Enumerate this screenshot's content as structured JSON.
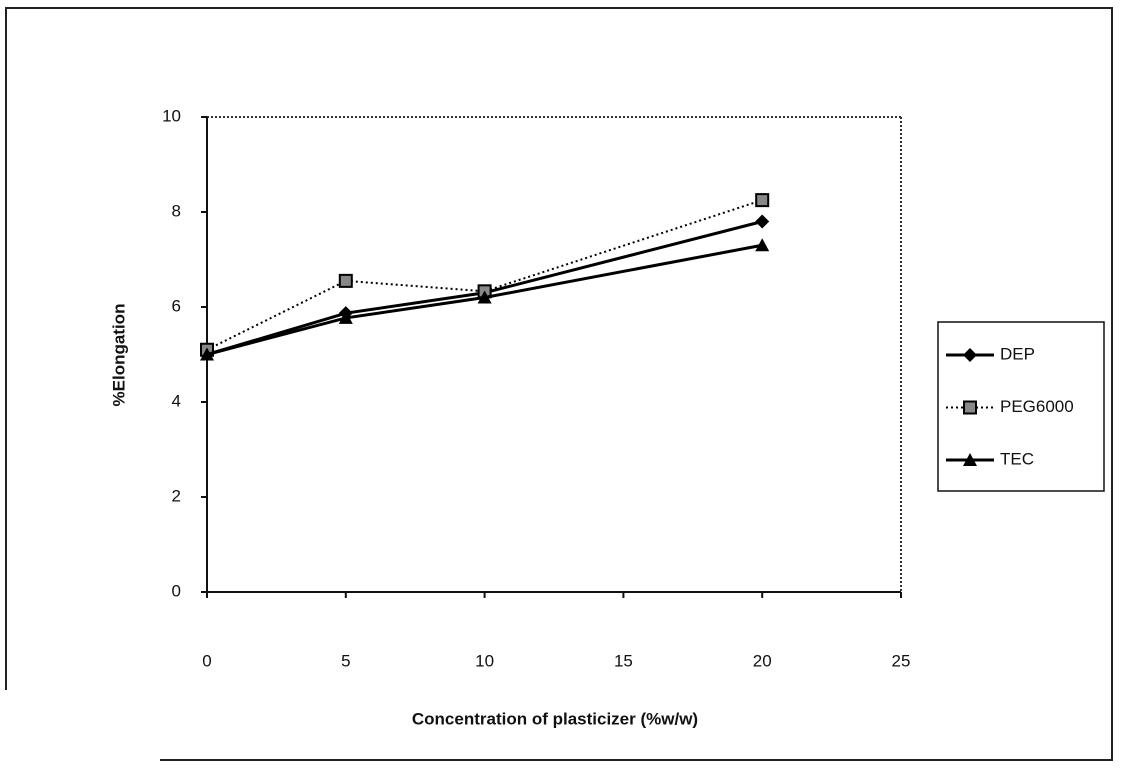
{
  "chart_data": {
    "type": "line",
    "x": [
      0,
      5,
      10,
      20
    ],
    "xlabel": "Concentration of plasticizer (%w/w)",
    "ylabel": "%Elongation",
    "xlim": [
      0,
      25
    ],
    "xticks": [
      0,
      5,
      10,
      15,
      20,
      25
    ],
    "ylim": [
      0,
      10
    ],
    "yticks": [
      0,
      2,
      4,
      6,
      8,
      10
    ],
    "legend": "right",
    "series": [
      {
        "name": "DEP",
        "color": "#000000",
        "marker": "diamond",
        "linestyle": "solid",
        "values": [
          5.0,
          5.87,
          6.3,
          7.8
        ]
      },
      {
        "name": "PEG6000",
        "color": "#000000",
        "marker": "square",
        "linestyle": "dotted",
        "values": [
          5.1,
          6.55,
          6.33,
          8.25
        ]
      },
      {
        "name": "TEC",
        "color": "#000000",
        "marker": "triangle",
        "linestyle": "solid",
        "values": [
          5.0,
          5.77,
          6.2,
          7.3
        ]
      }
    ]
  }
}
